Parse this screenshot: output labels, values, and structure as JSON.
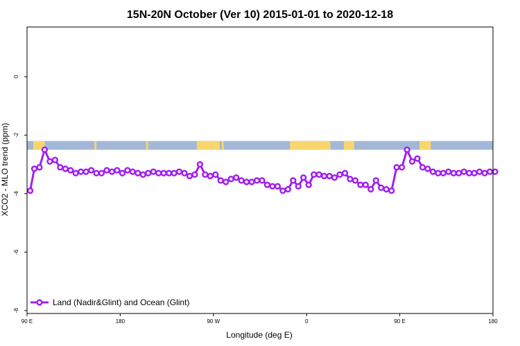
{
  "chart_data": {
    "type": "line",
    "title": "15N-20N October (Ver 10)   2015-01-01 to 2020-12-18",
    "xlabel": "Longitude (deg E)",
    "ylabel": "XCO2 - MLO trend (ppm)",
    "x_ticks": [
      {
        "value": 90,
        "label": "90 E"
      },
      {
        "value": 180,
        "label": "180"
      },
      {
        "value": 270,
        "label": "90 W"
      },
      {
        "value": 360,
        "label": "0"
      },
      {
        "value": 450,
        "label": "90 E"
      },
      {
        "value": 540,
        "label": "180"
      }
    ],
    "y_ticks": [
      {
        "value": 0,
        "label": "0"
      },
      {
        "value": -2,
        "label": "-2"
      },
      {
        "value": -4,
        "label": "-4"
      },
      {
        "value": -6,
        "label": "-6"
      },
      {
        "value": -8,
        "label": "-8"
      }
    ],
    "xlim": [
      90,
      540
    ],
    "ylim": [
      -8.1,
      1.7
    ],
    "grid": false,
    "legend_position": "bottom-left",
    "land_ocean_strip": {
      "y_range": [
        -2.5,
        -2.2
      ],
      "ocean_color": "#a3b8d8",
      "land_color": "#f8d66c",
      "land_segments": [
        [
          96,
          107
        ],
        [
          155,
          157
        ],
        [
          205,
          207
        ],
        [
          254,
          276
        ],
        [
          278,
          280
        ],
        [
          344,
          383
        ],
        [
          396,
          406
        ],
        [
          469,
          480
        ]
      ]
    },
    "series": [
      {
        "name": "Land (Nadir&Glint) and Ocean (Glint)",
        "color": "#a020f0",
        "marker": "open-circle",
        "x": [
          93,
          97,
          102,
          107,
          112,
          117,
          122,
          127,
          132,
          137,
          142,
          147,
          152,
          157,
          162,
          167,
          172,
          177,
          182,
          187,
          192,
          197,
          202,
          207,
          212,
          217,
          222,
          227,
          232,
          237,
          242,
          247,
          252,
          257,
          262,
          267,
          272,
          277,
          282,
          287,
          292,
          297,
          302,
          307,
          312,
          317,
          322,
          327,
          332,
          337,
          342,
          347,
          352,
          357,
          362,
          367,
          372,
          377,
          382,
          387,
          392,
          397,
          402,
          407,
          412,
          417,
          422,
          427,
          432,
          437,
          442,
          447,
          452,
          457,
          462,
          467,
          472,
          477,
          482,
          487,
          492,
          497,
          502,
          507,
          512,
          517,
          522,
          527,
          532,
          537,
          542
        ],
        "y": [
          -3.9,
          -3.15,
          -3.1,
          -2.5,
          -2.9,
          -2.85,
          -3.1,
          -3.15,
          -3.2,
          -3.3,
          -3.25,
          -3.25,
          -3.2,
          -3.3,
          -3.3,
          -3.2,
          -3.25,
          -3.2,
          -3.3,
          -3.2,
          -3.25,
          -3.3,
          -3.35,
          -3.3,
          -3.25,
          -3.3,
          -3.3,
          -3.3,
          -3.3,
          -3.25,
          -3.3,
          -3.4,
          -3.35,
          -3.0,
          -3.35,
          -3.4,
          -3.35,
          -3.55,
          -3.6,
          -3.5,
          -3.45,
          -3.55,
          -3.6,
          -3.6,
          -3.55,
          -3.55,
          -3.7,
          -3.75,
          -3.75,
          -3.9,
          -3.85,
          -3.55,
          -3.75,
          -3.45,
          -3.7,
          -3.35,
          -3.35,
          -3.4,
          -3.4,
          -3.45,
          -3.35,
          -3.3,
          -3.5,
          -3.55,
          -3.7,
          -3.7,
          -3.85,
          -3.55,
          -3.8,
          -3.85,
          -3.9,
          -3.1,
          -3.1,
          -2.5,
          -2.9,
          -2.8,
          -3.1,
          -3.15,
          -3.25,
          -3.3,
          -3.3,
          -3.25,
          -3.3,
          -3.3,
          -3.25,
          -3.3,
          -3.3,
          -3.25,
          -3.3,
          -3.25,
          -3.25
        ]
      }
    ]
  }
}
